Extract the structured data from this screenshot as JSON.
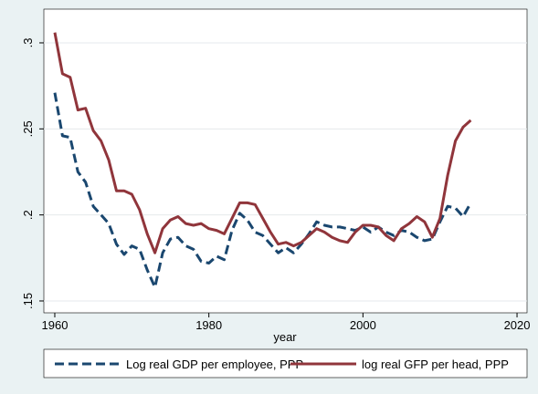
{
  "chart_data": {
    "type": "line",
    "xlabel": "year",
    "x": [
      1960,
      1961,
      1962,
      1963,
      1964,
      1965,
      1966,
      1967,
      1968,
      1969,
      1970,
      1971,
      1972,
      1973,
      1974,
      1975,
      1976,
      1977,
      1978,
      1979,
      1980,
      1981,
      1982,
      1983,
      1984,
      1985,
      1986,
      1987,
      1988,
      1989,
      1990,
      1991,
      1992,
      1993,
      1994,
      1995,
      1996,
      1997,
      1998,
      1999,
      2000,
      2001,
      2002,
      2003,
      2004,
      2005,
      2006,
      2007,
      2008,
      2009,
      2010,
      2011,
      2012,
      2013,
      2014
    ],
    "series": [
      {
        "name": "Log real GDP per employee, PPP",
        "color": "#1a476f",
        "dashed": true,
        "values": [
          0.271,
          0.246,
          0.245,
          0.225,
          0.219,
          0.205,
          0.2,
          0.195,
          0.183,
          0.177,
          0.182,
          0.18,
          0.168,
          0.158,
          0.178,
          0.186,
          0.187,
          0.182,
          0.18,
          0.173,
          0.172,
          0.176,
          0.174,
          0.191,
          0.201,
          0.197,
          0.19,
          0.188,
          0.183,
          0.178,
          0.181,
          0.178,
          0.183,
          0.189,
          0.196,
          0.194,
          0.193,
          0.193,
          0.192,
          0.191,
          0.193,
          0.19,
          0.193,
          0.19,
          0.188,
          0.191,
          0.19,
          0.187,
          0.185,
          0.186,
          0.196,
          0.205,
          0.204,
          0.199,
          0.207
        ]
      },
      {
        "name": "log real GFP per head, PPP",
        "color": "#90353b",
        "dashed": false,
        "values": [
          0.306,
          0.282,
          0.28,
          0.261,
          0.262,
          0.249,
          0.243,
          0.232,
          0.214,
          0.214,
          0.212,
          0.203,
          0.189,
          0.178,
          0.192,
          0.197,
          0.199,
          0.195,
          0.194,
          0.195,
          0.192,
          0.191,
          0.189,
          0.198,
          0.207,
          0.207,
          0.206,
          0.198,
          0.19,
          0.183,
          0.184,
          0.182,
          0.184,
          0.188,
          0.192,
          0.19,
          0.187,
          0.185,
          0.184,
          0.19,
          0.194,
          0.194,
          0.193,
          0.188,
          0.185,
          0.192,
          0.195,
          0.199,
          0.196,
          0.187,
          0.198,
          0.223,
          0.243,
          0.251,
          0.255
        ]
      }
    ],
    "xlim": [
      1958.58,
      2021.3
    ],
    "xticks": [
      1960,
      1980,
      2000,
      2020
    ],
    "ylim": [
      0.1431,
      0.3196
    ],
    "yticks": [
      {
        "value": 0.15,
        "label": ".15"
      },
      {
        "value": 0.2,
        "label": ".2"
      },
      {
        "value": 0.25,
        "label": ".25"
      },
      {
        "value": 0.3,
        "label": ".3"
      }
    ],
    "grid": true
  }
}
